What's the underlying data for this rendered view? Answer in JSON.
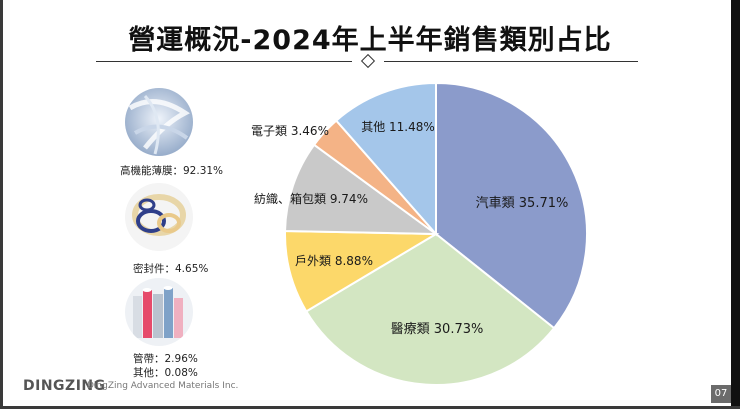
{
  "header": {
    "title": "營運概況-2024年上半年銷售類別占比"
  },
  "products": [
    {
      "caption": "高機能薄膜：92.31%"
    },
    {
      "caption": "密封件：4.65%"
    },
    {
      "caption": "管帶：2.96%"
    },
    {
      "caption": "其他：0.08%"
    }
  ],
  "chart_data": {
    "type": "pie",
    "title": "營運概況-2024年上半年銷售類別占比",
    "slices": [
      {
        "name": "汽車類",
        "value": 35.71,
        "label": "汽車類 35.71%",
        "color": "#8b9bcb"
      },
      {
        "name": "醫療類",
        "value": 30.73,
        "label": "醫療類 30.73%",
        "color": "#d3e6c2"
      },
      {
        "name": "戶外類",
        "value": 8.88,
        "label": "戶外類 8.88%",
        "color": "#fcd86a"
      },
      {
        "name": "紡織、箱包類",
        "value": 9.74,
        "label": "紡織、箱包類 9.74%",
        "color": "#c9c9c9"
      },
      {
        "name": "電子類",
        "value": 3.46,
        "label": "電子類 3.46%",
        "color": "#f4b386"
      },
      {
        "name": "其他",
        "value": 11.48,
        "label": "其他 11.48%",
        "color": "#a4c6ea"
      }
    ]
  },
  "footer": {
    "logo": "DINGZING",
    "company": "DingZing Advanced Materials Inc.",
    "page_number": "07"
  }
}
